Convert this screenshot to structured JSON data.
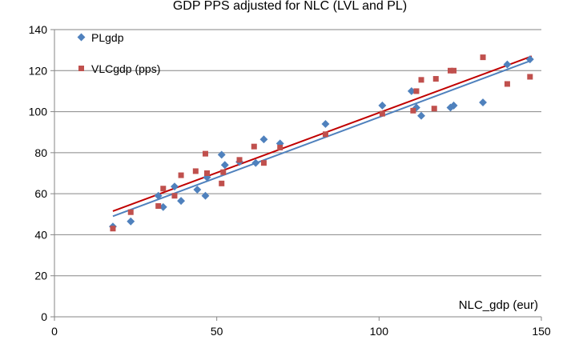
{
  "chart_data": {
    "type": "scatter",
    "title": "GDP PPS adjusted for NLC (LVL and PL)",
    "xlabel": "NLC_gdp (eur)",
    "ylabel": "",
    "xlim": [
      0,
      150
    ],
    "ylim": [
      0,
      140
    ],
    "xticks": [
      0,
      50,
      100,
      150
    ],
    "yticks": [
      0,
      20,
      40,
      60,
      80,
      100,
      120,
      140
    ],
    "grid": "horizontal",
    "legend_position": "top-left",
    "series": [
      {
        "name": "PLgdp",
        "marker": "diamond",
        "color": "#4F81BD",
        "line_color": "#4F81BD",
        "trend": {
          "type": "linear",
          "x": [
            18,
            147
          ],
          "y": [
            49,
            125
          ]
        },
        "points": [
          [
            18,
            44
          ],
          [
            23.5,
            46.5
          ],
          [
            32,
            59
          ],
          [
            33.5,
            53.5
          ],
          [
            37,
            63.5
          ],
          [
            39,
            56.5
          ],
          [
            44,
            62
          ],
          [
            46.5,
            59
          ],
          [
            47,
            68
          ],
          [
            51.5,
            79
          ],
          [
            52.5,
            74
          ],
          [
            57,
            75.5
          ],
          [
            62,
            75
          ],
          [
            64.5,
            86.5
          ],
          [
            69.5,
            84.5
          ],
          [
            83.5,
            94
          ],
          [
            101,
            103
          ],
          [
            110,
            110
          ],
          [
            111.5,
            102
          ],
          [
            113,
            98
          ],
          [
            122,
            102
          ],
          [
            123,
            103
          ],
          [
            132,
            104.5
          ],
          [
            139.5,
            123
          ],
          [
            146.5,
            125.5
          ]
        ]
      },
      {
        "name": "VLCgdp (pps)",
        "marker": "square",
        "color": "#C0504D",
        "line_color": "#C00000",
        "trend": {
          "type": "linear",
          "x": [
            18,
            147
          ],
          "y": [
            51.5,
            127
          ]
        },
        "points": [
          [
            18,
            43
          ],
          [
            23.5,
            51
          ],
          [
            32,
            54
          ],
          [
            33.5,
            62.5
          ],
          [
            37,
            59
          ],
          [
            39,
            69
          ],
          [
            43.5,
            71
          ],
          [
            46.5,
            79.5
          ],
          [
            47,
            70
          ],
          [
            51.5,
            65
          ],
          [
            52,
            70.5
          ],
          [
            57,
            76.5
          ],
          [
            61.5,
            83
          ],
          [
            64.5,
            75
          ],
          [
            69.5,
            82.5
          ],
          [
            83.5,
            89
          ],
          [
            101,
            99
          ],
          [
            110.5,
            100.5
          ],
          [
            111.5,
            110
          ],
          [
            113,
            115.5
          ],
          [
            117,
            101.5
          ],
          [
            117.5,
            116
          ],
          [
            122,
            120
          ],
          [
            123,
            120
          ],
          [
            132,
            126.5
          ],
          [
            139.5,
            113.5
          ],
          [
            146.5,
            117
          ]
        ]
      }
    ]
  }
}
